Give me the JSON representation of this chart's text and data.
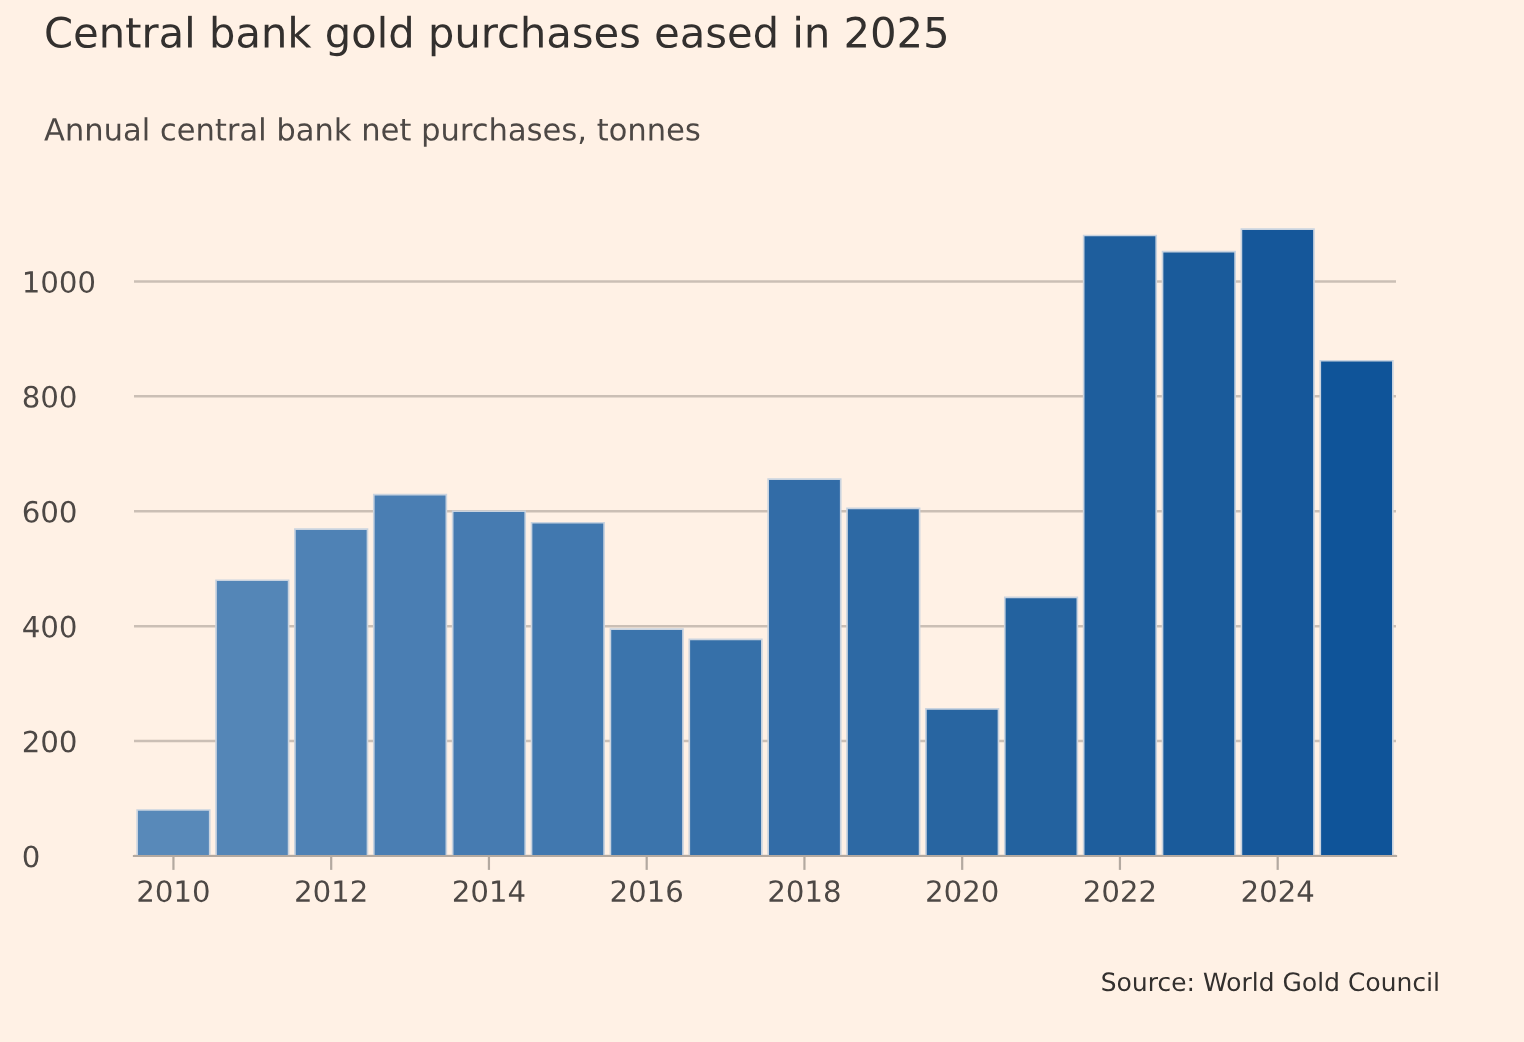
{
  "chart_data": {
    "type": "bar",
    "title": "Central bank gold purchases eased in 2025",
    "subtitle": "Annual central bank net purchases, tonnes",
    "x": [
      2010,
      2011,
      2012,
      2013,
      2014,
      2015,
      2016,
      2017,
      2018,
      2019,
      2020,
      2021,
      2022,
      2023,
      2024,
      2025
    ],
    "values": [
      80,
      480,
      569,
      629,
      600,
      580,
      395,
      377,
      656,
      605,
      256,
      450,
      1080,
      1052,
      1091,
      862
    ],
    "colors": [
      "#5889b9",
      "#5486b7",
      "#4f82b5",
      "#4a7eb3",
      "#467bb1",
      "#4178af",
      "#3b74ac",
      "#3670a9",
      "#326ca7",
      "#2d69a4",
      "#2865a1",
      "#23629f",
      "#1e5e9d",
      "#1a5b9b",
      "#15579a",
      "#0f5499"
    ],
    "xlim": [
      2009.5,
      2025.5
    ],
    "xticks": [
      2010,
      2012,
      2014,
      2016,
      2018,
      2020,
      2022,
      2024
    ],
    "ylim": [
      0,
      1100
    ],
    "yticks": [
      0,
      200,
      400,
      600,
      800,
      1000
    ],
    "grid": "y",
    "legend": false,
    "annotations": [
      "Source: World Gold Council"
    ]
  }
}
